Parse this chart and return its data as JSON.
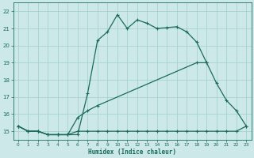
{
  "xlabel": "Humidex (Indice chaleur)",
  "bg_color": "#cce8e8",
  "grid_color": "#9fcfcf",
  "line_color": "#1a6b5a",
  "xlim": [
    -0.5,
    23.5
  ],
  "ylim": [
    14.5,
    22.5
  ],
  "xticks": [
    0,
    1,
    2,
    3,
    4,
    5,
    6,
    7,
    8,
    9,
    10,
    11,
    12,
    13,
    14,
    15,
    16,
    17,
    18,
    19,
    20,
    21,
    22,
    23
  ],
  "yticks": [
    15,
    16,
    17,
    18,
    19,
    20,
    21,
    22
  ],
  "line1_x": [
    0,
    1,
    2,
    3,
    4,
    5,
    6,
    7,
    8,
    9,
    10,
    11,
    12,
    13,
    14,
    15,
    16,
    17,
    18,
    19
  ],
  "line1_y": [
    15.3,
    15.0,
    15.0,
    14.8,
    14.8,
    14.8,
    14.8,
    17.2,
    20.3,
    20.8,
    21.8,
    21.0,
    21.5,
    21.3,
    21.0,
    21.05,
    21.1,
    20.8,
    20.2,
    19.0
  ],
  "line2_x": [
    0,
    1,
    2,
    3,
    4,
    5,
    6,
    7,
    8,
    9,
    10,
    11,
    12,
    13,
    14,
    15,
    16,
    17,
    18,
    19,
    20,
    21,
    22,
    23
  ],
  "line2_y": [
    15.3,
    15.0,
    15.0,
    14.8,
    14.8,
    14.8,
    15.0,
    15.0,
    15.0,
    15.0,
    15.0,
    15.0,
    15.0,
    15.0,
    15.0,
    15.0,
    15.0,
    15.0,
    15.0,
    15.0,
    15.0,
    15.0,
    15.0,
    15.3
  ],
  "line3_x": [
    0,
    1,
    2,
    3,
    4,
    5,
    6,
    7,
    8,
    18,
    19,
    20,
    21,
    22,
    23
  ],
  "line3_y": [
    15.3,
    15.0,
    15.0,
    14.8,
    14.8,
    14.8,
    15.8,
    16.2,
    16.5,
    19.0,
    19.0,
    17.8,
    16.8,
    16.2,
    15.3
  ]
}
